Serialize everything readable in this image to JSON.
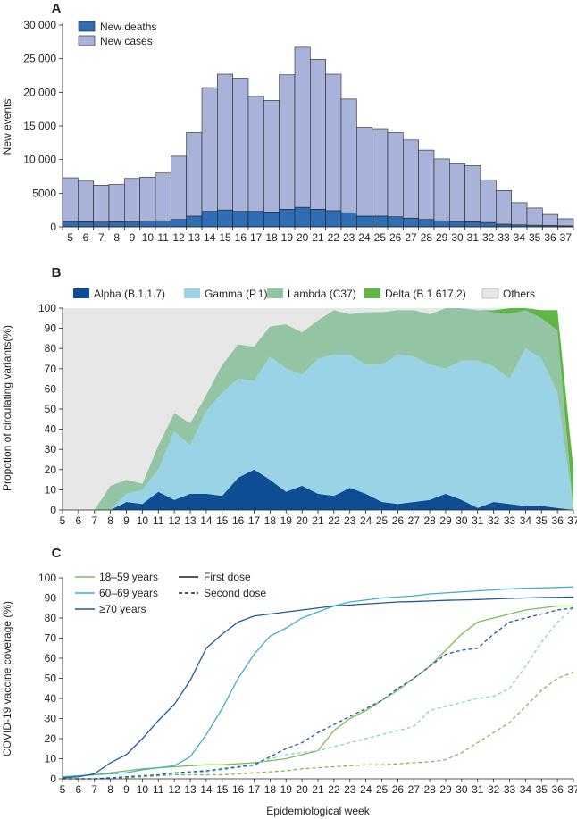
{
  "chart_data": [
    {
      "panel": "A",
      "type": "bar",
      "stacked": true,
      "ylabel": "New events",
      "xlabel": "",
      "ylim": [
        0,
        30000
      ],
      "yticks": [
        0,
        5000,
        10000,
        15000,
        20000,
        25000,
        30000
      ],
      "ytick_labels": [
        "0",
        "5000",
        "10 000",
        "15 000",
        "20 000",
        "25 000",
        "30 000"
      ],
      "categories": [
        "5",
        "6",
        "7",
        "8",
        "9",
        "10",
        "11",
        "12",
        "13",
        "14",
        "15",
        "16",
        "17",
        "18",
        "19",
        "20",
        "21",
        "22",
        "23",
        "24",
        "25",
        "26",
        "27",
        "28",
        "29",
        "30",
        "31",
        "32",
        "33",
        "34",
        "35",
        "36",
        "37"
      ],
      "series": [
        {
          "name": "New deaths",
          "color": "#2f6db5",
          "values": [
            800,
            750,
            700,
            750,
            800,
            850,
            900,
            1100,
            1600,
            2300,
            2500,
            2300,
            2300,
            2200,
            2600,
            2900,
            2600,
            2400,
            2100,
            1600,
            1600,
            1500,
            1300,
            1100,
            900,
            800,
            750,
            650,
            400,
            300,
            250,
            200,
            150
          ]
        },
        {
          "name": "New cases",
          "color": "#a9b3d9",
          "values": [
            6500,
            6050,
            5500,
            5550,
            6400,
            6550,
            7100,
            9400,
            12400,
            18400,
            20200,
            19800,
            17100,
            16600,
            20000,
            23800,
            22300,
            20300,
            16900,
            13200,
            13000,
            12500,
            11600,
            10300,
            9200,
            8600,
            8350,
            6350,
            5000,
            3300,
            2550,
            1650,
            1050
          ]
        }
      ],
      "legend_position": "top-left"
    },
    {
      "panel": "B",
      "type": "area",
      "stacked": true,
      "ylabel": "Propotion of circulating variants(%)",
      "xlabel": "",
      "ylim": [
        0,
        100
      ],
      "yticks": [
        0,
        10,
        20,
        30,
        40,
        50,
        60,
        70,
        80,
        90,
        100
      ],
      "x": [
        5,
        6,
        7,
        8,
        9,
        10,
        11,
        12,
        13,
        14,
        15,
        16,
        17,
        18,
        19,
        20,
        21,
        22,
        23,
        24,
        25,
        26,
        27,
        28,
        29,
        30,
        31,
        32,
        33,
        34,
        35,
        36,
        37
      ],
      "series": [
        {
          "name": "Alpha (B.1.1.7)",
          "color": "#0d4d94",
          "values": [
            0,
            0,
            0,
            0,
            4,
            3,
            9,
            5,
            8,
            8,
            7,
            16,
            20,
            15,
            9,
            12,
            8,
            7,
            11,
            8,
            4,
            3,
            4,
            5,
            8,
            5,
            1,
            4,
            3,
            2,
            2,
            1,
            0
          ]
        },
        {
          "name": "Gamma (P.1)",
          "color": "#9bd3e6",
          "values": [
            0,
            0,
            0,
            0,
            4,
            7,
            11,
            34,
            24,
            41,
            51,
            49,
            44,
            61,
            61,
            55,
            67,
            70,
            66,
            64,
            68,
            74,
            72,
            67,
            62,
            69,
            73,
            67,
            62,
            78,
            73,
            57,
            0
          ]
        },
        {
          "name": "Lambda (C37)",
          "color": "#93c4a3",
          "values": [
            0,
            0,
            0,
            12,
            7,
            3,
            12,
            9,
            11,
            8,
            14,
            17,
            17,
            15,
            22,
            21,
            19,
            22,
            20,
            26,
            26,
            22,
            23,
            25,
            30,
            26,
            25,
            27,
            32,
            19,
            20,
            31,
            0
          ]
        },
        {
          "name": "Delta (B.1.617.2)",
          "color": "#5fb546",
          "values": [
            0,
            0,
            0,
            0,
            0,
            0,
            0,
            0,
            0,
            0,
            0,
            0,
            0,
            0,
            0,
            0,
            0,
            0,
            0,
            0,
            0,
            0,
            0,
            0,
            0,
            0,
            0,
            1,
            4,
            2,
            4,
            10,
            20
          ]
        },
        {
          "name": "Others",
          "color": "#e7e7e8",
          "values": [
            100,
            100,
            100,
            88,
            85,
            87,
            68,
            52,
            57,
            43,
            28,
            18,
            19,
            9,
            8,
            12,
            6,
            1,
            3,
            2,
            2,
            1,
            1,
            3,
            0,
            0,
            1,
            1,
            0,
            0,
            0,
            0,
            0
          ]
        }
      ],
      "legend_position": "top"
    },
    {
      "panel": "C",
      "type": "line",
      "ylabel": "COVID-19 vaccine coverage (%)",
      "xlabel": "Epidemiological week",
      "ylim": [
        0,
        100
      ],
      "yticks": [
        0,
        10,
        20,
        30,
        40,
        50,
        60,
        70,
        80,
        90,
        100
      ],
      "x": [
        5,
        6,
        7,
        8,
        9,
        10,
        11,
        12,
        13,
        14,
        15,
        16,
        17,
        18,
        19,
        20,
        21,
        22,
        23,
        24,
        25,
        26,
        27,
        28,
        29,
        30,
        31,
        32,
        33,
        34,
        35,
        36,
        37
      ],
      "age_legend": [
        "18–59 years",
        "60–69 years",
        "≥70 years"
      ],
      "dose_legend": [
        "First dose",
        "Second dose"
      ],
      "series": [
        {
          "name": "18–59 years first dose",
          "color": "#7cbd52",
          "dash": "solid",
          "values": [
            1,
            1.5,
            2,
            3,
            4,
            5,
            5.5,
            6,
            6.5,
            7,
            7,
            7.5,
            8,
            9,
            10,
            12,
            14,
            24,
            30,
            34,
            39,
            44,
            50,
            56,
            64,
            72,
            78,
            80,
            82,
            84,
            85,
            86,
            86
          ]
        },
        {
          "name": "18–59 years second dose",
          "color": "#7cbd52",
          "dash": "dashed",
          "values": [
            0,
            0,
            0,
            0,
            0.5,
            1,
            1.5,
            2,
            2,
            2,
            2,
            2.5,
            3,
            3.5,
            4,
            5,
            5.5,
            6,
            6.5,
            7,
            7,
            7.5,
            8,
            8.5,
            9.5,
            13,
            18,
            23,
            28,
            36,
            44,
            50,
            53
          ]
        },
        {
          "name": "60–69 years first dose",
          "color": "#3cb1c9",
          "dash": "solid",
          "values": [
            1,
            1.5,
            2,
            2.5,
            3,
            4.5,
            5.5,
            6.5,
            11,
            22,
            35,
            50,
            62,
            71,
            75,
            80,
            83,
            86,
            88,
            89,
            90,
            90.5,
            91,
            92,
            92.5,
            93,
            93.5,
            94,
            94.5,
            94.8,
            95,
            95.2,
            95.5
          ]
        },
        {
          "name": "60–69 years second dose",
          "color": "#86cfe0",
          "dash": "dashed",
          "values": [
            0,
            0,
            0,
            0.5,
            1,
            1.5,
            2,
            2.5,
            3,
            3.5,
            4.5,
            5.5,
            6.5,
            10,
            12,
            13,
            14,
            16,
            18,
            20,
            22,
            24,
            26,
            34,
            36,
            38,
            40,
            41,
            45,
            56,
            68,
            78,
            85
          ]
        },
        {
          "name": "≥70 years first dose",
          "color": "#1e5a96",
          "dash": "solid",
          "values": [
            0.5,
            1,
            2.5,
            8,
            12,
            20,
            29,
            37,
            49,
            65,
            72,
            78,
            81,
            82,
            83,
            84,
            85,
            86,
            86.5,
            87,
            87.5,
            88,
            88.2,
            88.5,
            88.8,
            89,
            89.2,
            89.5,
            89.8,
            90,
            90.2,
            90.3,
            90.5
          ]
        },
        {
          "name": "≥70 years second dose",
          "color": "#1e5a96",
          "dash": "dashed",
          "values": [
            0,
            0,
            0,
            0.5,
            1,
            1.5,
            2,
            3,
            3.5,
            4,
            5,
            6,
            7,
            11,
            15,
            18,
            23,
            27,
            31,
            35,
            39,
            45,
            50,
            56,
            62,
            64,
            65,
            72,
            78,
            80,
            82,
            84,
            85
          ]
        }
      ],
      "legend_position": "top-left"
    }
  ]
}
